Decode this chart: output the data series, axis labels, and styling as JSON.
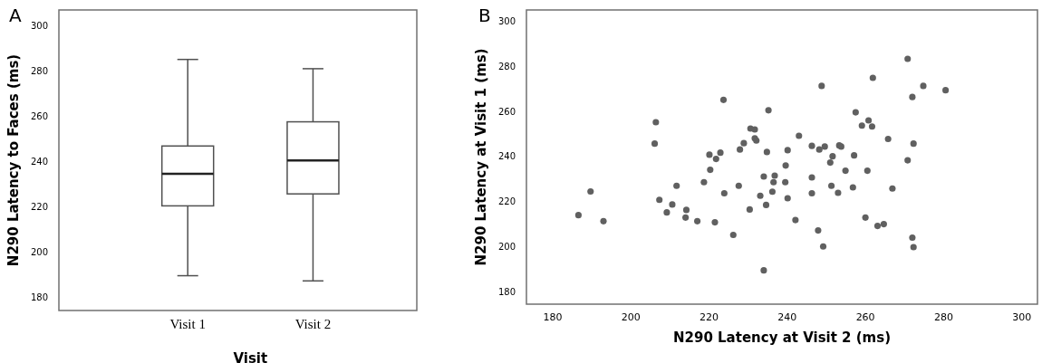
{
  "chart_data": [
    {
      "type": "box",
      "title": "A",
      "xlabel": "Visit",
      "ylabel": "N290 Latency to Faces (ms)",
      "categories": [
        "Visit 1",
        "Visit 2"
      ],
      "boxes": [
        {
          "low": 189.4,
          "q1": 220.3,
          "median": 234.5,
          "q3": 246.8,
          "high": 285.1
        },
        {
          "low": 187.1,
          "q1": 225.6,
          "median": 240.4,
          "q3": 257.5,
          "high": 281.0
        }
      ],
      "ylim": [
        174,
        307
      ],
      "yticks": [
        180,
        200,
        220,
        240,
        260,
        280,
        300
      ],
      "grid": false
    },
    {
      "type": "scatter",
      "title": "B",
      "xlabel": "N290 Latency at Visit 2 (ms)",
      "ylabel": "N290 Latency at Visit 1 (ms)",
      "x": [
        270.8,
        261.9,
        248.8,
        274.8,
        280.5,
        272.0,
        223.7,
        235.2,
        257.5,
        206.4,
        260.8,
        259.1,
        261.7,
        230.6,
        231.7,
        243.0,
        231.7,
        232.1,
        265.8,
        228.9,
        227.9,
        220.1,
        221.8,
        222.9,
        220.3,
        218.7,
        227.6,
        223.9,
        234.8,
        240.1,
        239.6,
        234.0,
        236.8,
        236.5,
        239.5,
        236.2,
        233.1,
        240.1,
        234.6,
        230.4,
        217.0,
        221.5,
        226.2,
        242.1,
        234.0,
        247.9,
        249.2,
        246.3,
        248.2,
        249.6,
        253.3,
        253.8,
        251.6,
        251.0,
        257.1,
        254.9,
        246.3,
        251.3,
        246.3,
        253.0,
        256.8,
        260.5,
        260.0,
        272.3,
        270.8,
        266.9,
        263.1,
        264.7,
        272.0,
        272.3,
        206.1,
        189.7,
        186.6,
        193.0,
        207.3,
        211.7,
        210.6,
        209.2,
        214.2,
        214.0
      ],
      "values": [
        283.3,
        274.9,
        271.3,
        271.3,
        269.4,
        266.4,
        265.1,
        260.5,
        259.6,
        255.2,
        256.0,
        253.7,
        253.3,
        252.4,
        252.0,
        249.2,
        248.1,
        247.1,
        247.8,
        245.9,
        243.1,
        240.8,
        238.9,
        241.7,
        234.1,
        228.6,
        227.0,
        223.7,
        242.0,
        242.8,
        236.0,
        231.1,
        231.5,
        228.6,
        228.6,
        224.4,
        222.6,
        221.5,
        218.5,
        216.5,
        211.3,
        210.8,
        205.2,
        211.8,
        189.5,
        207.2,
        200.1,
        244.7,
        243.1,
        244.4,
        244.9,
        244.4,
        240.1,
        237.3,
        240.5,
        233.7,
        230.7,
        227.0,
        223.7,
        223.9,
        226.3,
        233.7,
        212.9,
        245.7,
        238.3,
        225.8,
        209.2,
        210.0,
        204.0,
        199.8,
        245.7,
        224.5,
        214.0,
        211.3,
        220.8,
        227.0,
        218.7,
        215.2,
        216.3,
        212.9
      ],
      "color": "#606060",
      "marker": "circle",
      "xlim": [
        173.3,
        304
      ],
      "xticks": [
        180,
        200,
        220,
        240,
        260,
        280,
        300
      ],
      "ylim": [
        174.5,
        305
      ],
      "yticks": [
        180,
        200,
        220,
        240,
        260,
        280,
        300
      ],
      "grid": false
    }
  ]
}
